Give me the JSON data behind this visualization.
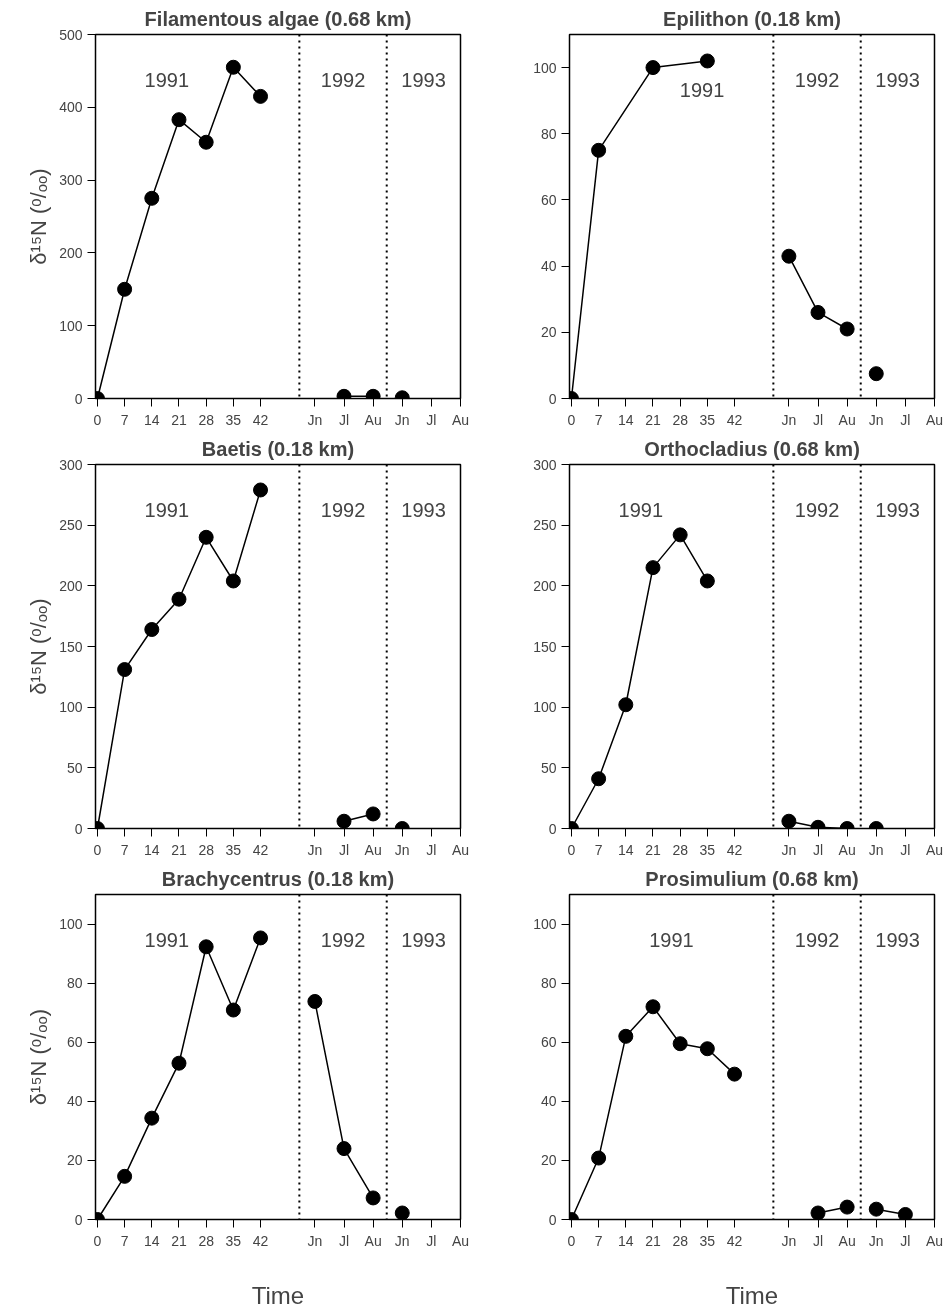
{
  "chart_data": [
    {
      "type": "line",
      "title": "Filamentous algae (0.68 km)",
      "ylabel": "δ¹⁵N (ᵒ/ₒₒ)",
      "xlim": [
        -0.5,
        93.5
      ],
      "ylim": [
        0,
        500
      ],
      "yticks": [
        0,
        100,
        200,
        300,
        400,
        500
      ],
      "xticks": [
        0,
        7,
        14,
        21,
        28,
        35,
        42,
        {
          "value": 56,
          "label": "Jn"
        },
        {
          "value": 63.5,
          "label": "Jl"
        },
        {
          "value": 71,
          "label": "Au"
        },
        {
          "value": 78.5,
          "label": "Jn"
        },
        {
          "value": 86,
          "label": "Jl"
        },
        {
          "value": 93.5,
          "label": "Au"
        }
      ],
      "marker": "circle",
      "line_style": "solid",
      "grid": false,
      "ref_lines": [
        {
          "axis": "x",
          "value": 52,
          "line_style": "dotted"
        },
        {
          "axis": "x",
          "value": 74.5,
          "line_style": "dotted"
        }
      ],
      "annotations": [
        "1991",
        "1992",
        "1993"
      ],
      "series": [
        {
          "color": "#000000",
          "x": [
            0,
            7,
            14,
            21,
            28,
            35,
            42
          ],
          "values": [
            0,
            150,
            275,
            383,
            352,
            455,
            415
          ]
        },
        {
          "color": "#000000",
          "x": [
            63.5,
            71
          ],
          "values": [
            3,
            3
          ]
        },
        {
          "color": "#000000",
          "x": [
            78.5
          ],
          "values": [
            1
          ]
        }
      ]
    },
    {
      "type": "line",
      "title": "Epilithon (0.18 km)",
      "xlim": [
        -0.5,
        93.5
      ],
      "ylim": [
        0,
        110
      ],
      "yticks": [
        0,
        20,
        40,
        60,
        80,
        100
      ],
      "xticks": [
        0,
        7,
        14,
        21,
        28,
        35,
        42,
        {
          "value": 56,
          "label": "Jn"
        },
        {
          "value": 63.5,
          "label": "Jl"
        },
        {
          "value": 71,
          "label": "Au"
        },
        {
          "value": 78.5,
          "label": "Jn"
        },
        {
          "value": 86,
          "label": "Jl"
        },
        {
          "value": 93.5,
          "label": "Au"
        }
      ],
      "marker": "circle",
      "line_style": "solid",
      "grid": false,
      "ref_lines": [
        {
          "axis": "x",
          "value": 52,
          "line_style": "dotted"
        },
        {
          "axis": "x",
          "value": 74.5,
          "line_style": "dotted"
        }
      ],
      "annotations": [
        "1991",
        "1992",
        "1993"
      ],
      "series": [
        {
          "color": "#000000",
          "x": [
            0,
            7,
            21,
            35
          ],
          "values": [
            0,
            75,
            100,
            102
          ]
        },
        {
          "color": "#000000",
          "x": [
            56,
            63.5,
            71
          ],
          "values": [
            43,
            26,
            21
          ]
        },
        {
          "color": "#000000",
          "x": [
            78.5
          ],
          "values": [
            7.5
          ]
        }
      ]
    },
    {
      "type": "line",
      "title": "Baetis (0.18 km)",
      "ylabel": "δ¹⁵N (ᵒ/ₒₒ)",
      "xlim": [
        -0.5,
        93.5
      ],
      "ylim": [
        0,
        300
      ],
      "yticks": [
        0,
        50,
        100,
        150,
        200,
        250,
        300
      ],
      "xticks": [
        0,
        7,
        14,
        21,
        28,
        35,
        42,
        {
          "value": 56,
          "label": "Jn"
        },
        {
          "value": 63.5,
          "label": "Jl"
        },
        {
          "value": 71,
          "label": "Au"
        },
        {
          "value": 78.5,
          "label": "Jn"
        },
        {
          "value": 86,
          "label": "Jl"
        },
        {
          "value": 93.5,
          "label": "Au"
        }
      ],
      "marker": "circle",
      "line_style": "solid",
      "grid": false,
      "ref_lines": [
        {
          "axis": "x",
          "value": 52,
          "line_style": "dotted"
        },
        {
          "axis": "x",
          "value": 74.5,
          "line_style": "dotted"
        }
      ],
      "annotations": [
        "1991",
        "1992",
        "1993"
      ],
      "series": [
        {
          "color": "#000000",
          "x": [
            0,
            7,
            14,
            21,
            28,
            35,
            42
          ],
          "values": [
            0,
            131,
            164,
            189,
            240,
            204,
            279
          ]
        },
        {
          "color": "#000000",
          "x": [
            63.5,
            71
          ],
          "values": [
            6,
            12
          ]
        },
        {
          "color": "#000000",
          "x": [
            78.5
          ],
          "values": [
            0
          ]
        }
      ]
    },
    {
      "type": "line",
      "title": "Orthocladius (0.68 km)",
      "xlim": [
        -0.5,
        93.5
      ],
      "ylim": [
        0,
        300
      ],
      "yticks": [
        0,
        50,
        100,
        150,
        200,
        250,
        300
      ],
      "xticks": [
        0,
        7,
        14,
        21,
        28,
        35,
        42,
        {
          "value": 56,
          "label": "Jn"
        },
        {
          "value": 63.5,
          "label": "Jl"
        },
        {
          "value": 71,
          "label": "Au"
        },
        {
          "value": 78.5,
          "label": "Jn"
        },
        {
          "value": 86,
          "label": "Jl"
        },
        {
          "value": 93.5,
          "label": "Au"
        }
      ],
      "marker": "circle",
      "line_style": "solid",
      "grid": false,
      "ref_lines": [
        {
          "axis": "x",
          "value": 52,
          "line_style": "dotted"
        },
        {
          "axis": "x",
          "value": 74.5,
          "line_style": "dotted"
        }
      ],
      "annotations": [
        "1991",
        "1992",
        "1993"
      ],
      "series": [
        {
          "color": "#000000",
          "x": [
            0,
            7,
            14,
            21,
            28,
            35
          ],
          "values": [
            0,
            41,
            102,
            215,
            242,
            204
          ]
        },
        {
          "color": "#000000",
          "x": [
            56,
            63.5,
            71
          ],
          "values": [
            6,
            1,
            0
          ]
        },
        {
          "color": "#000000",
          "x": [
            78.5
          ],
          "values": [
            0
          ]
        }
      ]
    },
    {
      "type": "line",
      "title": "Brachycentrus (0.18 km)",
      "ylabel": "δ¹⁵N (ᵒ/ₒₒ)",
      "xlabel": "Time",
      "xlim": [
        -0.5,
        93.5
      ],
      "ylim": [
        0,
        110
      ],
      "yticks": [
        0,
        20,
        40,
        60,
        80,
        100
      ],
      "xticks": [
        0,
        7,
        14,
        21,
        28,
        35,
        42,
        {
          "value": 56,
          "label": "Jn"
        },
        {
          "value": 63.5,
          "label": "Jl"
        },
        {
          "value": 71,
          "label": "Au"
        },
        {
          "value": 78.5,
          "label": "Jn"
        },
        {
          "value": 86,
          "label": "Jl"
        },
        {
          "value": 93.5,
          "label": "Au"
        }
      ],
      "marker": "circle",
      "line_style": "solid",
      "grid": false,
      "ref_lines": [
        {
          "axis": "x",
          "value": 52,
          "line_style": "dotted"
        },
        {
          "axis": "x",
          "value": 74.5,
          "line_style": "dotted"
        }
      ],
      "annotations": [
        "1991",
        "1992",
        "1993"
      ],
      "series": [
        {
          "color": "#000000",
          "x": [
            0,
            7,
            14,
            21,
            28,
            35,
            42
          ],
          "values": [
            0,
            14.6,
            34.3,
            52.9,
            92.3,
            70.9,
            95.3
          ]
        },
        {
          "color": "#000000",
          "x": [
            56,
            63.5,
            71
          ],
          "values": [
            73.8,
            24,
            7.3
          ]
        },
        {
          "color": "#000000",
          "x": [
            78.5
          ],
          "values": [
            2.2
          ]
        }
      ]
    },
    {
      "type": "line",
      "title": "Prosimulium (0.68 km)",
      "xlabel": "Time",
      "xlim": [
        -0.5,
        93.5
      ],
      "ylim": [
        0,
        110
      ],
      "yticks": [
        0,
        20,
        40,
        60,
        80,
        100
      ],
      "xticks": [
        0,
        7,
        14,
        21,
        28,
        35,
        42,
        {
          "value": 56,
          "label": "Jn"
        },
        {
          "value": 63.5,
          "label": "Jl"
        },
        {
          "value": 71,
          "label": "Au"
        },
        {
          "value": 78.5,
          "label": "Jn"
        },
        {
          "value": 86,
          "label": "Jl"
        },
        {
          "value": 93.5,
          "label": "Au"
        }
      ],
      "marker": "circle",
      "line_style": "solid",
      "grid": false,
      "ref_lines": [
        {
          "axis": "x",
          "value": 52,
          "line_style": "dotted"
        },
        {
          "axis": "x",
          "value": 74.5,
          "line_style": "dotted"
        }
      ],
      "annotations": [
        "1991",
        "1992",
        "1993"
      ],
      "series": [
        {
          "color": "#000000",
          "x": [
            0,
            7,
            14,
            21,
            28,
            35,
            42
          ],
          "values": [
            0,
            20.8,
            62,
            72,
            59.5,
            57.8,
            49.2
          ]
        },
        {
          "color": "#000000",
          "x": [
            63.5,
            71
          ],
          "values": [
            2.2,
            4.2
          ]
        },
        {
          "color": "#000000",
          "x": [
            78.5,
            86
          ],
          "values": [
            3.5,
            1.7
          ]
        }
      ]
    }
  ]
}
